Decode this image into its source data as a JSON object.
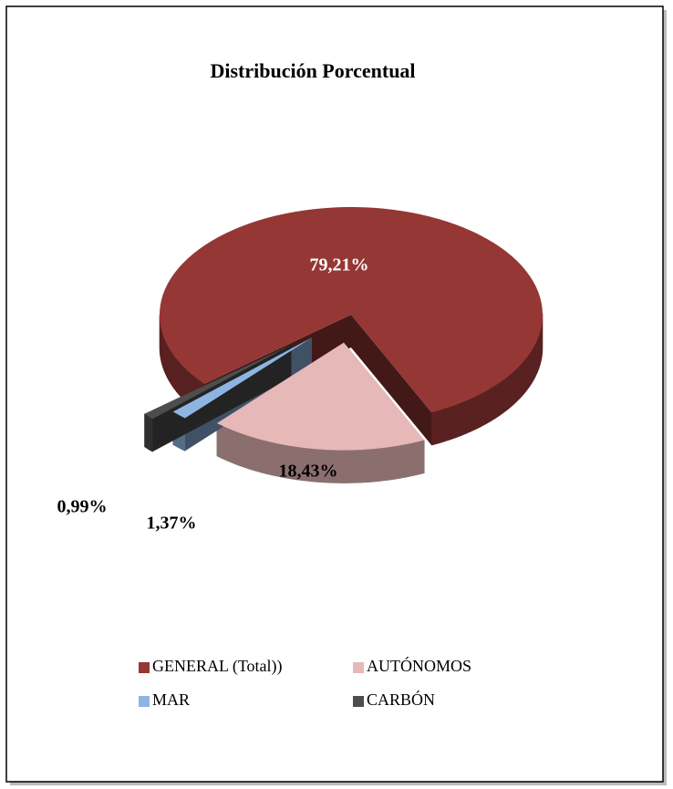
{
  "chart_data": {
    "type": "pie",
    "title": "Distribución Porcentual",
    "categories": [
      "GENERAL (Total))",
      "AUTÓNOMOS",
      "MAR",
      "CARBÓN"
    ],
    "values": [
      79.21,
      18.43,
      1.37,
      0.99
    ],
    "value_labels": [
      "79,21%",
      "18,43%",
      "1,37%",
      "0,99%"
    ],
    "colors": [
      "#953735",
      "#e6b9b8",
      "#8eb4e3",
      "#4d4d4d"
    ],
    "legend": "bottom"
  }
}
